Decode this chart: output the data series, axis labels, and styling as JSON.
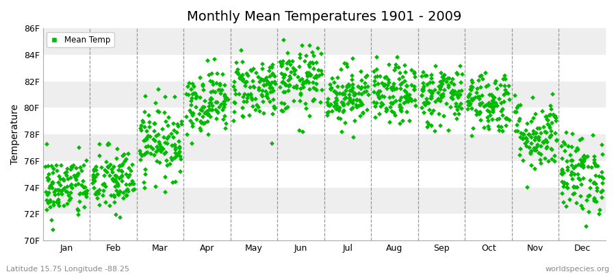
{
  "title": "Monthly Mean Temperatures 1901 - 2009",
  "ylabel": "Temperature",
  "monthly_means": [
    74.0,
    74.5,
    77.5,
    80.5,
    81.5,
    82.0,
    81.0,
    81.0,
    81.0,
    80.5,
    78.0,
    75.0
  ],
  "monthly_stds": [
    1.2,
    1.3,
    1.4,
    1.2,
    1.2,
    1.3,
    1.1,
    1.1,
    1.2,
    1.2,
    1.4,
    1.5
  ],
  "years": 109,
  "ylim": [
    70,
    86
  ],
  "yticks": [
    70,
    72,
    74,
    76,
    78,
    80,
    82,
    84,
    86
  ],
  "ytick_labels": [
    "70F",
    "72F",
    "74F",
    "76F",
    "78F",
    "80F",
    "82F",
    "84F",
    "86F"
  ],
  "month_names": [
    "Jan",
    "Feb",
    "Mar",
    "Apr",
    "May",
    "Jun",
    "Jul",
    "Aug",
    "Sep",
    "Oct",
    "Nov",
    "Dec"
  ],
  "marker_color": "#00BB00",
  "marker_size": 3.5,
  "bg_light": "#FFFFFF",
  "bg_dark": "#EEEEEE",
  "fig_bg": "#FFFFFF",
  "legend_label": "Mean Temp",
  "footer_left": "Latitude 15.75 Longitude -88.25",
  "footer_right": "worldspecies.org",
  "title_fontsize": 14,
  "label_fontsize": 10,
  "tick_fontsize": 9,
  "footer_fontsize": 8,
  "seed": 42
}
